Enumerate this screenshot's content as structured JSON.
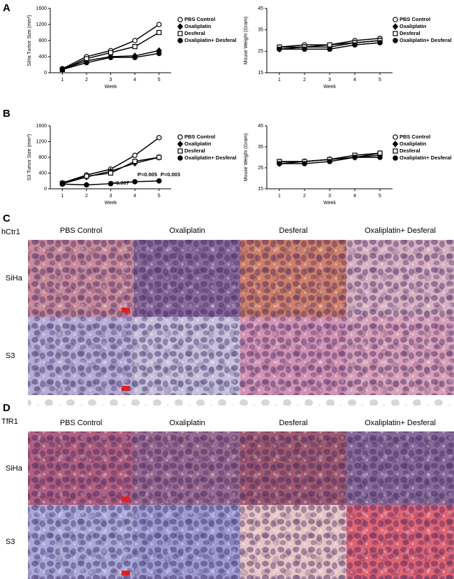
{
  "panel_labels": [
    "A",
    "B",
    "C",
    "D"
  ],
  "chart_data": [
    {
      "type": "line",
      "xlabel": "Week",
      "ylabel": "SiHa Tumor Size (mm³)",
      "x": [
        1,
        2,
        3,
        4,
        5
      ],
      "xlim": [
        0.5,
        5.5
      ],
      "xticks": [
        1,
        2,
        3,
        4,
        5
      ],
      "ylim": [
        0,
        1600
      ],
      "yticks": [
        0,
        400,
        800,
        1200,
        1600
      ],
      "series": [
        {
          "name": "PBS Control",
          "color": "#000000",
          "marker": "open-circle",
          "values": [
            100,
            400,
            550,
            800,
            1200
          ]
        },
        {
          "name": "Oxaliplatin",
          "color": "#000000",
          "marker": "filled-diamond",
          "values": [
            90,
            300,
            400,
            420,
            550
          ]
        },
        {
          "name": "Desferal",
          "color": "#000000",
          "marker": "open-square",
          "values": [
            80,
            350,
            500,
            650,
            1000
          ]
        },
        {
          "name": "Oxaliplatin+ Desferal",
          "color": "#000000",
          "marker": "filled-circle",
          "values": [
            80,
            250,
            380,
            380,
            480
          ]
        }
      ]
    },
    {
      "type": "line",
      "xlabel": "Week",
      "ylabel": "Mouse Weight (Gram)",
      "x": [
        1,
        2,
        3,
        4,
        5
      ],
      "xlim": [
        0.5,
        5.5
      ],
      "xticks": [
        1,
        2,
        3,
        4,
        5
      ],
      "ylim": [
        15,
        45
      ],
      "yticks": [
        15,
        25,
        35,
        45
      ],
      "series": [
        {
          "name": "PBS Control",
          "color": "#000000",
          "marker": "open-circle",
          "values": [
            27,
            28,
            28,
            30,
            31
          ]
        },
        {
          "name": "Oxaliplatin",
          "color": "#000000",
          "marker": "filled-diamond",
          "values": [
            26,
            27,
            27,
            29,
            30
          ]
        },
        {
          "name": "Desferal",
          "color": "#000000",
          "marker": "open-square",
          "values": [
            27,
            27,
            28,
            29,
            30
          ]
        },
        {
          "name": "Oxaliplatin+ Desferal",
          "color": "#000000",
          "marker": "filled-circle",
          "values": [
            26,
            26,
            26,
            28,
            29
          ]
        }
      ]
    },
    {
      "type": "line",
      "xlabel": "Week",
      "ylabel": "S3 Tumor Size (mm³)",
      "x": [
        1,
        2,
        3,
        4,
        5
      ],
      "xlim": [
        0.5,
        5.5
      ],
      "xticks": [
        1,
        2,
        3,
        4,
        5
      ],
      "ylim": [
        0,
        1600
      ],
      "yticks": [
        0,
        400,
        800,
        1200,
        1600
      ],
      "annotations": [
        "P=0.007",
        "P=0.005",
        "P=0.003"
      ],
      "series": [
        {
          "name": "PBS Control",
          "color": "#000000",
          "marker": "open-circle",
          "values": [
            150,
            350,
            500,
            850,
            1300
          ]
        },
        {
          "name": "Oxaliplatin",
          "color": "#000000",
          "marker": "filled-diamond",
          "values": [
            130,
            300,
            450,
            650,
            800
          ]
        },
        {
          "name": "Desferal",
          "color": "#000000",
          "marker": "open-square",
          "values": [
            140,
            320,
            400,
            700,
            800
          ]
        },
        {
          "name": "Oxaliplatin+ Desferal",
          "color": "#000000",
          "marker": "filled-circle",
          "values": [
            120,
            100,
            130,
            180,
            200
          ]
        }
      ]
    },
    {
      "type": "line",
      "xlabel": "Week",
      "ylabel": "Mouse Weight (Gram)",
      "x": [
        1,
        2,
        3,
        4,
        5
      ],
      "xlim": [
        0.5,
        5.5
      ],
      "xticks": [
        1,
        2,
        3,
        4,
        5
      ],
      "ylim": [
        15,
        45
      ],
      "yticks": [
        15,
        25,
        35,
        45
      ],
      "series": [
        {
          "name": "PBS Control",
          "color": "#000000",
          "marker": "open-circle",
          "values": [
            28,
            28,
            29,
            30,
            32
          ]
        },
        {
          "name": "Oxaliplatin",
          "color": "#000000",
          "marker": "filled-diamond",
          "values": [
            27,
            28,
            29,
            30,
            31
          ]
        },
        {
          "name": "Desferal",
          "color": "#000000",
          "marker": "open-square",
          "values": [
            28,
            28,
            29,
            31,
            32
          ]
        },
        {
          "name": "Oxaliplatin+ Desferal",
          "color": "#000000",
          "marker": "filled-circle",
          "values": [
            27,
            27,
            28,
            30,
            30
          ]
        }
      ]
    }
  ],
  "histology": [
    {
      "stain": "hCtr1",
      "columns": [
        "PBS Control",
        "Oxaliplatin",
        "Desferal",
        "Oxaliplatin+ Desferal"
      ],
      "rows": [
        "SiHa",
        "S3"
      ]
    },
    {
      "stain": "TfR1",
      "columns": [
        "PBS Control",
        "Oxaliplatin",
        "Desferal",
        "Oxaliplatin+ Desferal"
      ],
      "rows": [
        "SiHa",
        "S3"
      ]
    }
  ]
}
